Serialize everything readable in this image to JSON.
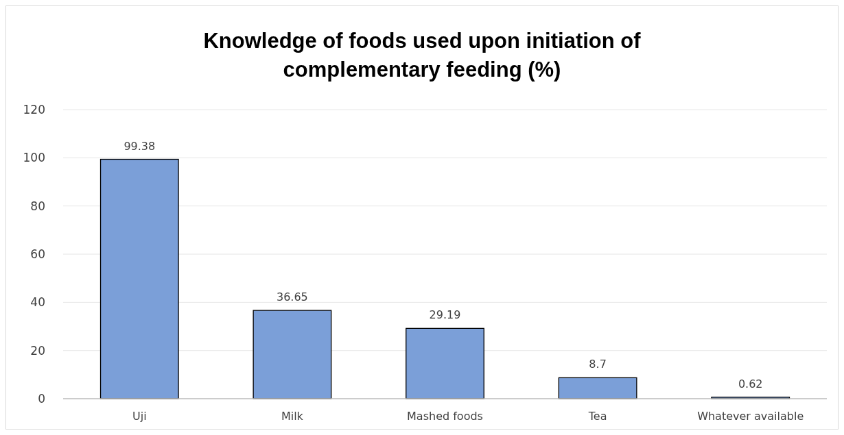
{
  "chart_data": {
    "type": "bar",
    "title": "Knowledge of foods used upon initiation of complementary feeding (%)",
    "categories": [
      "Uji",
      "Milk",
      "Mashed foods",
      "Tea",
      "Whatever available"
    ],
    "values": [
      99.38,
      36.65,
      29.19,
      8.7,
      0.62
    ],
    "color": "#7b9fd8",
    "ylim": [
      0,
      120
    ],
    "yticks": [
      0,
      20,
      40,
      60,
      80,
      100,
      120
    ],
    "grid": "y",
    "data_labels": true
  }
}
